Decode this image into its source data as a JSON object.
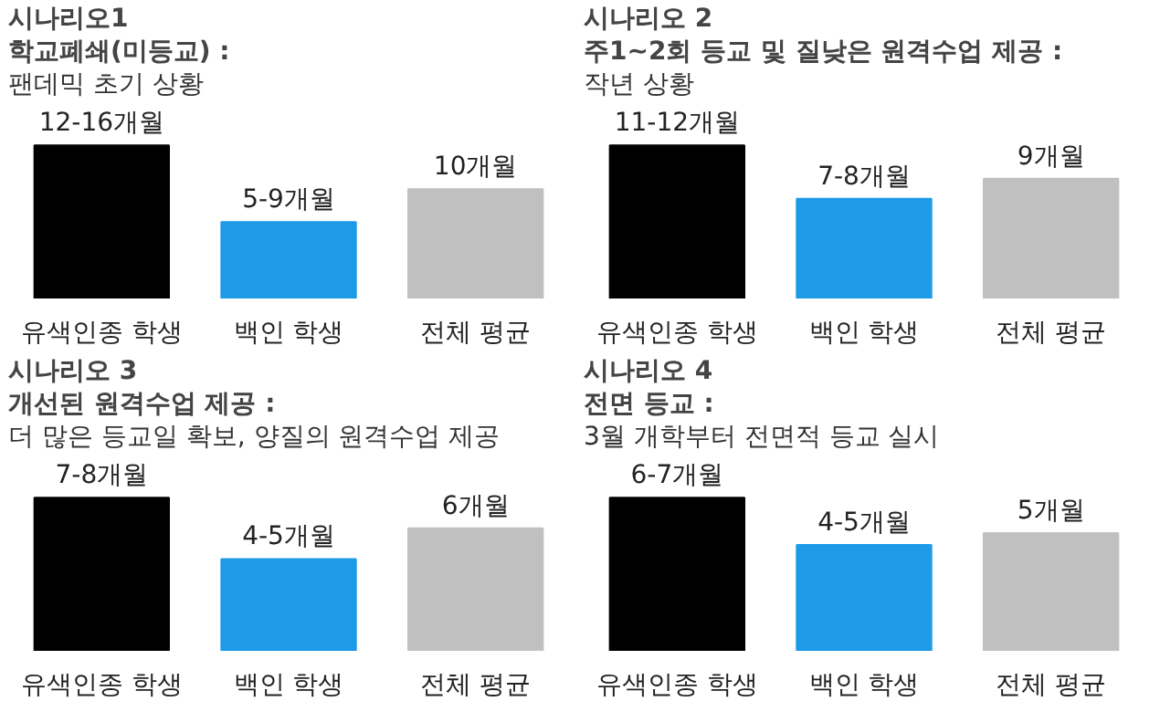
{
  "chart_data": [
    {
      "type": "bar",
      "title": "시나리오1",
      "subtitle": "학교폐쇄(미등교) :",
      "annotations": [
        "팬데믹 초기 상황"
      ],
      "categories": [
        "유색인종 학생",
        "백인 학생",
        "전체 평균"
      ],
      "values": [
        14,
        7,
        10
      ],
      "colors": [
        "#000000",
        "#1e9be6",
        "#c0c0c0"
      ],
      "value_labels": [
        "12-16개월",
        "5-9개월",
        "10개월"
      ],
      "tick_labels": "x"
    },
    {
      "type": "bar",
      "title": "시나리오 2",
      "subtitle": "주1~2회 등교 및 질낮은 원격수업 제공 :",
      "annotations": [
        "작년 상황"
      ],
      "categories": [
        "유색인종 학생",
        "백인 학생",
        "전체 평균"
      ],
      "values": [
        11.5,
        7.5,
        9
      ],
      "colors": [
        "#000000",
        "#1e9be6",
        "#c0c0c0"
      ],
      "value_labels": [
        "11-12개월",
        "7-8개월",
        "9개월"
      ],
      "tick_labels": "x"
    },
    {
      "type": "bar",
      "title": "시나리오 3",
      "subtitle": "개선된 원격수업 제공 :",
      "annotations": [
        "더 많은 등교일 확보, 양질의 원격수업 제공"
      ],
      "categories": [
        "유색인종 학생",
        "백인 학생",
        "전체 평균"
      ],
      "values": [
        7.5,
        4.5,
        6
      ],
      "colors": [
        "#000000",
        "#1e9be6",
        "#c0c0c0"
      ],
      "value_labels": [
        "7-8개월",
        "4-5개월",
        "6개월"
      ],
      "tick_labels": "x"
    },
    {
      "type": "bar",
      "title": "시나리오 4",
      "subtitle": "전면 등교 :",
      "annotations": [
        "3월 개학부터 전면적 등교 실시"
      ],
      "categories": [
        "유색인종 학생",
        "백인 학생",
        "전체 평균"
      ],
      "values": [
        6.5,
        4.5,
        5
      ],
      "colors": [
        "#000000",
        "#1e9be6",
        "#c0c0c0"
      ],
      "value_labels": [
        "6-7개월",
        "4-5개월",
        "5개월"
      ],
      "tick_labels": "x"
    }
  ]
}
